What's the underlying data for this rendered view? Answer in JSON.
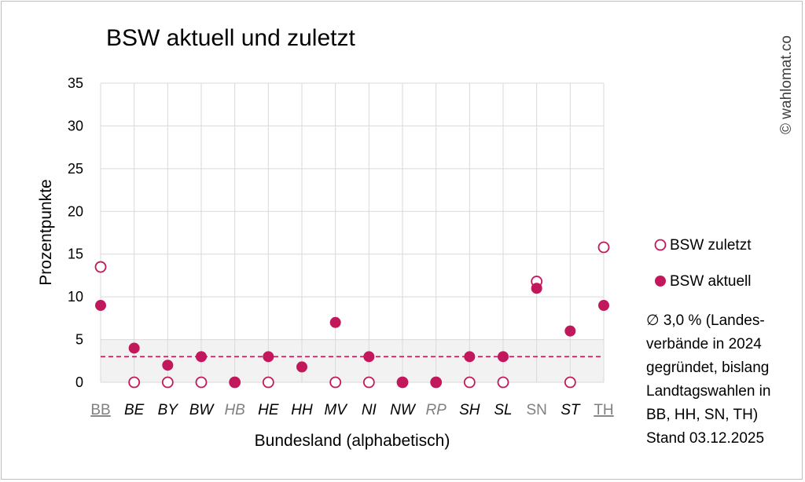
{
  "colors": {
    "accent": "#c2185b",
    "grid": "#d9d9d9",
    "band": "#f2f2f2",
    "muted_label": "#808080"
  },
  "chart_data": {
    "type": "scatter",
    "title": "BSW aktuell und zuletzt",
    "xlabel": "Bundesland (alphabetisch)",
    "ylabel": "Prozentpunkte",
    "ylim": [
      0,
      35
    ],
    "yticks": [
      "0",
      "5",
      "10",
      "15",
      "20",
      "25",
      "30",
      "35"
    ],
    "grid": true,
    "legend_position": "right",
    "categories": [
      "BB",
      "BE",
      "BY",
      "BW",
      "HB",
      "HE",
      "HH",
      "MV",
      "NI",
      "NW",
      "RP",
      "SH",
      "SL",
      "SN",
      "ST",
      "TH"
    ],
    "category_styles": [
      "underline-gray",
      "italic",
      "italic",
      "italic",
      "italic-gray",
      "italic",
      "italic",
      "italic",
      "italic",
      "italic",
      "italic-gray",
      "italic",
      "italic",
      "gray",
      "italic",
      "underline-gray"
    ],
    "series": [
      {
        "name": "BSW zuletzt",
        "marker": "hollow-circle",
        "values": [
          13.5,
          0,
          0,
          0,
          0,
          0,
          null,
          0,
          0,
          0,
          0,
          0,
          0,
          11.8,
          0,
          15.8
        ]
      },
      {
        "name": "BSW aktuell",
        "marker": "filled-circle",
        "values": [
          9,
          4,
          2,
          3,
          0,
          3,
          1.8,
          7,
          3,
          0,
          0,
          3,
          3,
          11,
          6,
          9
        ]
      }
    ],
    "average_line": 3.0,
    "band_range": [
      0,
      5
    ]
  },
  "note": {
    "lines": [
      "∅ 3,0 % (Landes-",
      "verbände in 2024",
      "gegründet, bislang",
      "Landtagswahlen in",
      "BB, HH, SN, TH)",
      "Stand 03.12.2025"
    ]
  },
  "copyright": "© wahlomat.co"
}
